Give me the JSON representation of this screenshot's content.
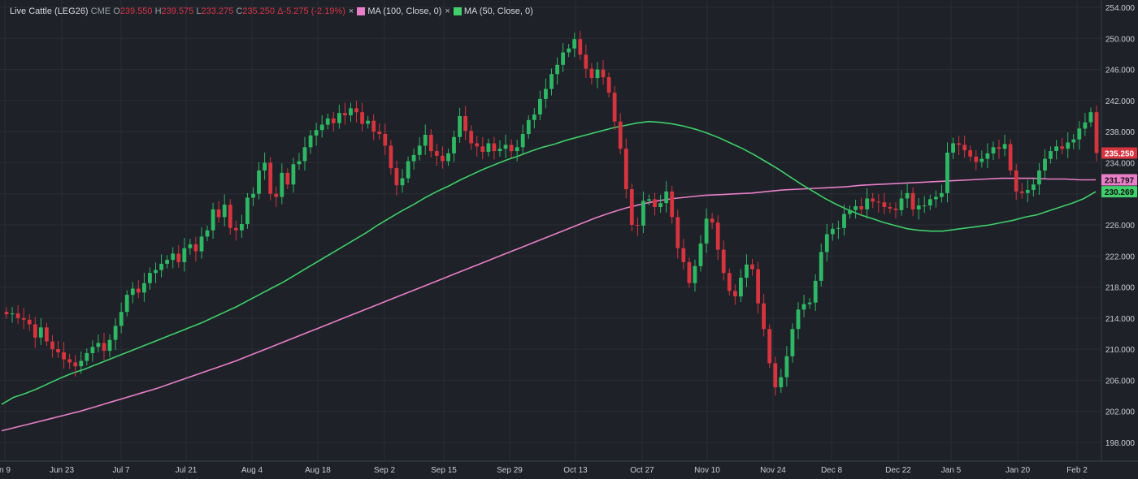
{
  "legend": {
    "instrument": "Live Cattle (LEG26)",
    "exchange": "CME",
    "o_prefix": "O",
    "open": "239.550",
    "h_prefix": "H",
    "high": "239.575",
    "l_prefix": "L",
    "low": "233.275",
    "c_prefix": "C",
    "close": "235.250",
    "delta": "Δ-5.275 (-2.19%)",
    "ma100_label": "MA (100, Close, 0)",
    "ma50_label": "MA (50, Close, 0)",
    "remove_glyph": "×"
  },
  "colors": {
    "background": "#1e2127",
    "grid": "#2a2e36",
    "up": "#2eb865",
    "down": "#d6343f",
    "ma100": "#e97fc9",
    "ma50": "#3fcf6b",
    "axis_text": "#c9ccd1"
  },
  "chart_data": {
    "type": "candlestick",
    "y_axis_ticks": [
      "254.000",
      "250.000",
      "246.000",
      "242.000",
      "238.000",
      "234.000",
      "230.000",
      "226.000",
      "222.000",
      "218.000",
      "214.000",
      "210.000",
      "206.000",
      "202.000",
      "198.000"
    ],
    "ylim": [
      196,
      255
    ],
    "x_axis_labels": [
      "n 9",
      "Jun 23",
      "Jul 7",
      "Jul 21",
      "Aug 4",
      "Aug 18",
      "Sep 2",
      "Sep 15",
      "Sep 29",
      "Oct 13",
      "Oct 27",
      "Nov 10",
      "Nov 24",
      "Dec 8",
      "Dec 22",
      "Jan 5",
      "Jan 20",
      "Feb 2"
    ],
    "price_tags": [
      {
        "value": "235.250",
        "series": "last",
        "color": "#d6343f"
      },
      {
        "value": "231.797",
        "series": "MA (100, Close, 0)",
        "color": "#e97fc9"
      },
      {
        "value": "230.269",
        "series": "MA (50, Close, 0)",
        "color": "#3fcf6b"
      }
    ],
    "closes": [
      214.5,
      214.6,
      214.0,
      213.8,
      213.2,
      211.5,
      212.8,
      211.0,
      210.0,
      209.6,
      208.7,
      208.3,
      207.8,
      208.5,
      209.5,
      210.3,
      210.8,
      209.8,
      211.2,
      213.0,
      214.8,
      217.0,
      217.8,
      217.3,
      218.5,
      219.8,
      220.2,
      221.0,
      221.5,
      222.3,
      221.2,
      223.0,
      223.5,
      222.6,
      224.5,
      225.3,
      228.0,
      227.0,
      228.6,
      225.6,
      225.3,
      226.1,
      229.5,
      230.0,
      233.0,
      234.0,
      230.0,
      229.6,
      232.7,
      231.2,
      233.8,
      234.2,
      236.0,
      237.5,
      238.2,
      238.9,
      239.7,
      239.1,
      240.4,
      240.1,
      241.0,
      240.5,
      239.0,
      239.4,
      238.0,
      237.7,
      236.2,
      233.3,
      231.1,
      232.0,
      234.2,
      235.0,
      236.2,
      237.6,
      235.5,
      234.9,
      234.2,
      235.2,
      237.3,
      240.0,
      238.1,
      236.5,
      236.1,
      235.4,
      236.5,
      235.5,
      235.8,
      236.3,
      235.5,
      236.0,
      237.7,
      239.5,
      240.2,
      242.2,
      243.5,
      245.4,
      246.6,
      248.2,
      248.7,
      249.9,
      247.9,
      246.1,
      244.9,
      246.0,
      245.0,
      243.0,
      239.3,
      235.8,
      230.6,
      226.0,
      225.9,
      229.1,
      229.3,
      228.3,
      228.8,
      230.3,
      227.0,
      223.0,
      221.2,
      218.5,
      220.7,
      223.6,
      226.8,
      226.3,
      222.8,
      219.8,
      217.5,
      216.8,
      219.2,
      220.9,
      220.3,
      215.9,
      212.6,
      208.2,
      205.1,
      206.4,
      209.1,
      212.6,
      215.1,
      215.8,
      216.0,
      218.8,
      222.5,
      224.8,
      225.5,
      225.6,
      227.4,
      227.9,
      228.4,
      228.0,
      229.4,
      229.0,
      228.9,
      228.3,
      228.1,
      227.9,
      229.4,
      230.1,
      228.0,
      228.5,
      228.5,
      229.3,
      229.6,
      230.1,
      235.3,
      236.5,
      236.3,
      235.6,
      234.8,
      234.1,
      234.5,
      235.2,
      236.0,
      235.8,
      236.4,
      233.0,
      230.3,
      230.1,
      230.5,
      231.2,
      233.0,
      234.5,
      235.5,
      236.1,
      235.8,
      236.6,
      237.0,
      238.4,
      239.2,
      240.5,
      235.25
    ],
    "ma50": [
      202.9,
      203.8,
      204.3,
      204.9,
      205.6,
      206.3,
      206.9,
      207.4,
      208.0,
      208.6,
      209.2,
      209.8,
      210.4,
      211.0,
      211.6,
      212.2,
      212.8,
      213.4,
      214.1,
      214.8,
      215.5,
      216.3,
      217.1,
      217.9,
      218.7,
      219.6,
      220.5,
      221.4,
      222.3,
      223.2,
      224.1,
      225.0,
      226.0,
      226.9,
      227.8,
      228.6,
      229.5,
      230.3,
      231.0,
      231.8,
      232.5,
      233.2,
      233.8,
      234.4,
      234.9,
      235.5,
      236.0,
      236.4,
      236.9,
      237.3,
      237.7,
      238.1,
      238.5,
      238.8,
      239.1,
      239.3,
      239.2,
      239.0,
      238.7,
      238.3,
      237.8,
      237.2,
      236.5,
      235.8,
      235.0,
      234.1,
      233.2,
      232.2,
      231.2,
      230.3,
      229.4,
      228.6,
      227.9,
      227.3,
      226.8,
      226.3,
      225.9,
      225.5,
      225.3,
      225.2,
      225.2,
      225.4,
      225.6,
      225.8,
      226.0,
      226.3,
      226.6,
      227.0,
      227.3,
      227.8,
      228.3,
      228.8,
      229.4,
      230.269
    ],
    "ma100": [
      199.5,
      200.0,
      200.5,
      201.0,
      201.5,
      202.0,
      202.6,
      203.2,
      203.8,
      204.4,
      205.0,
      205.7,
      206.4,
      207.1,
      207.8,
      208.5,
      209.3,
      210.1,
      210.9,
      211.7,
      212.5,
      213.3,
      214.1,
      214.9,
      215.7,
      216.5,
      217.3,
      218.1,
      218.9,
      219.7,
      220.5,
      221.3,
      222.1,
      222.9,
      223.7,
      224.5,
      225.3,
      226.1,
      226.9,
      227.6,
      228.2,
      228.7,
      229.1,
      229.4,
      229.6,
      229.8,
      229.9,
      230.0,
      230.1,
      230.3,
      230.5,
      230.6,
      230.7,
      230.8,
      230.9,
      231.1,
      231.2,
      231.3,
      231.4,
      231.5,
      231.6,
      231.7,
      231.8,
      231.9,
      232.0,
      232.0,
      232.0,
      231.9,
      231.9,
      231.8,
      231.797
    ]
  }
}
